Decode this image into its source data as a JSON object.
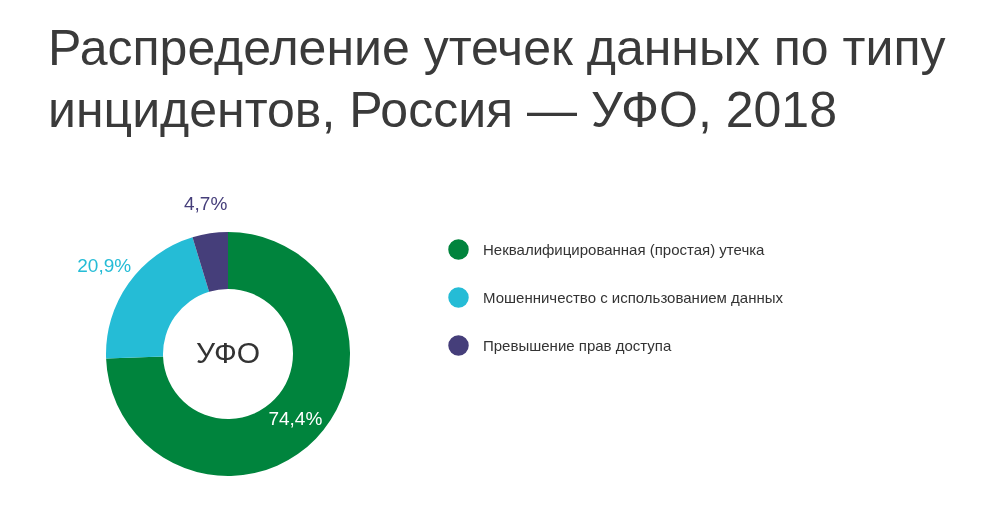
{
  "chart_data": {
    "type": "donut",
    "title": "Распределение утечек данных по типу инцидентов, Россия — УФО, 2018",
    "categories": [
      "Неквалифицированная (простая) утечка",
      "Мошенничество с использованием данных",
      "Превышение прав доступа"
    ],
    "values": [
      74.4,
      20.9,
      4.7
    ],
    "colors": [
      "#00843d",
      "#25bcd6",
      "#453e7a"
    ],
    "value_labels": [
      "74,4%",
      "20,9%",
      "4,7%"
    ],
    "annotations": [
      "УФО"
    ],
    "legend": "right"
  }
}
